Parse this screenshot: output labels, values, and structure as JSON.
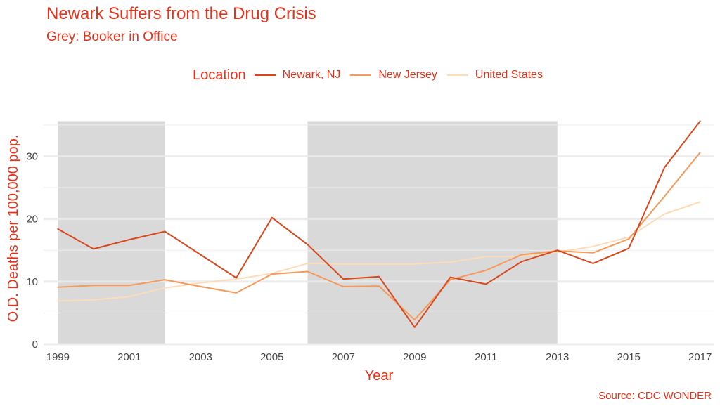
{
  "chart_data": {
    "type": "line",
    "title": "Newark Suffers from the Drug Crisis",
    "subtitle": "Grey: Booker in Office",
    "caption": "Source: CDC WONDER",
    "xlabel": "Year",
    "ylabel": "O.D. Deaths per 100,000 pop.",
    "xlim": [
      1998.6,
      2017.4
    ],
    "ylim": [
      0,
      37
    ],
    "x_ticks": [
      1999,
      2001,
      2003,
      2005,
      2007,
      2009,
      2011,
      2013,
      2015,
      2017
    ],
    "y_ticks": [
      0,
      10,
      20,
      30
    ],
    "grid": true,
    "legend": {
      "title": "Location",
      "position": "top"
    },
    "shaded_periods": [
      {
        "start": 1999,
        "end": 2002,
        "ymax": 35.6
      },
      {
        "start": 2006,
        "end": 2013,
        "ymax": 35.6
      }
    ],
    "x": [
      1999,
      2000,
      2001,
      2002,
      2003,
      2004,
      2005,
      2006,
      2007,
      2008,
      2009,
      2010,
      2011,
      2012,
      2013,
      2014,
      2015,
      2016,
      2017
    ],
    "series": [
      {
        "name": "Newark, NJ",
        "color": "#d9481c",
        "values": [
          18.4,
          15.2,
          16.7,
          18.0,
          14.3,
          10.6,
          20.2,
          15.9,
          10.4,
          10.8,
          2.7,
          10.7,
          9.6,
          13.2,
          15.0,
          12.9,
          15.3,
          28.2,
          35.6
        ]
      },
      {
        "name": "New Jersey",
        "color": "#f59a5b",
        "values": [
          9.1,
          9.4,
          9.4,
          10.3,
          9.2,
          8.2,
          11.2,
          11.6,
          9.2,
          9.3,
          3.9,
          10.3,
          11.8,
          14.3,
          14.9,
          14.6,
          16.8,
          23.6,
          30.6
        ]
      },
      {
        "name": "United States",
        "color": "#fddcb9",
        "values": [
          6.9,
          7.1,
          7.6,
          9.0,
          9.8,
          10.4,
          11.3,
          12.9,
          12.8,
          12.8,
          12.8,
          13.1,
          14.0,
          14.0,
          14.7,
          15.6,
          17.1,
          20.8,
          22.7
        ]
      }
    ]
  }
}
